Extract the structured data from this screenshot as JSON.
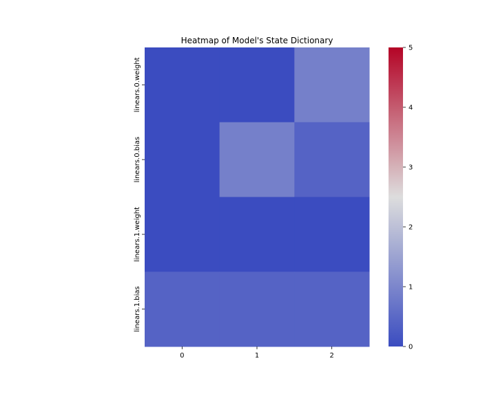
{
  "chart_data": {
    "type": "heatmap",
    "title": "Heatmap of Model's State Dictionary",
    "xlabel": "",
    "ylabel": "",
    "x_categories": [
      "0",
      "1",
      "2"
    ],
    "y_categories": [
      "linears.0.weight",
      "linears.0.bias",
      "linears.1.weight",
      "linears.1.bias"
    ],
    "values": [
      [
        0.0,
        0.0,
        0.9
      ],
      [
        0.0,
        0.9,
        0.4
      ],
      [
        0.0,
        0.0,
        0.0
      ],
      [
        0.4,
        0.4,
        0.4
      ]
    ],
    "colormap": "coolwarm",
    "vmin": 0,
    "vmax": 5,
    "colorbar_ticks": [
      0,
      1,
      2,
      3,
      4,
      5
    ],
    "colors": {
      "low": "#3b4cc0",
      "mid": "#dddddd",
      "high": "#b40426"
    }
  }
}
